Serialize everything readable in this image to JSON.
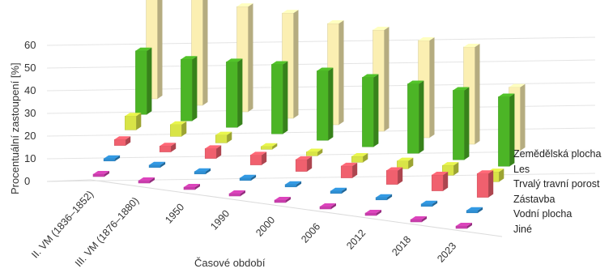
{
  "chart_data": {
    "type": "bar",
    "title": "",
    "ylabel": "Procentuální zastoupení [%]",
    "xlabel": "Časové období",
    "ylim": [
      0,
      60
    ],
    "yticks": [
      "0",
      "10",
      "20",
      "30",
      "40",
      "50",
      "60"
    ],
    "categories": [
      "II. VM (1836–1852)",
      "III. VM (1876–1880)",
      "1950",
      "1990",
      "2000",
      "2006",
      "2012",
      "2018",
      "2023"
    ],
    "series": [
      {
        "name": "Jiné",
        "color": "#cc3fae",
        "values": [
          0.5,
          0.5,
          0.5,
          0.5,
          0.5,
          0.5,
          0.5,
          0.5,
          0.5
        ]
      },
      {
        "name": "Vodní plocha",
        "color": "#2f8fd3",
        "values": [
          0.6,
          0.6,
          0.6,
          0.6,
          0.6,
          0.6,
          0.6,
          0.6,
          0.6
        ]
      },
      {
        "name": "Zástavba",
        "color": "#f0606e",
        "values": [
          3,
          3,
          5,
          5,
          6,
          6,
          7,
          8,
          12
        ]
      },
      {
        "name": "Trvalý travní porost",
        "color": "#d8e447",
        "values": [
          7,
          6,
          4,
          1.5,
          2,
          3,
          4,
          5,
          5
        ]
      },
      {
        "name": "Les",
        "color": "#4cb526",
        "values": [
          32,
          31,
          33,
          35,
          35,
          35,
          35,
          35,
          35
        ]
      },
      {
        "name": "Zemědělská plocha",
        "color": "#fbefb2",
        "values": [
          55,
          55,
          53,
          53,
          51,
          51,
          49,
          49,
          32
        ]
      }
    ],
    "legend_position": "right"
  }
}
